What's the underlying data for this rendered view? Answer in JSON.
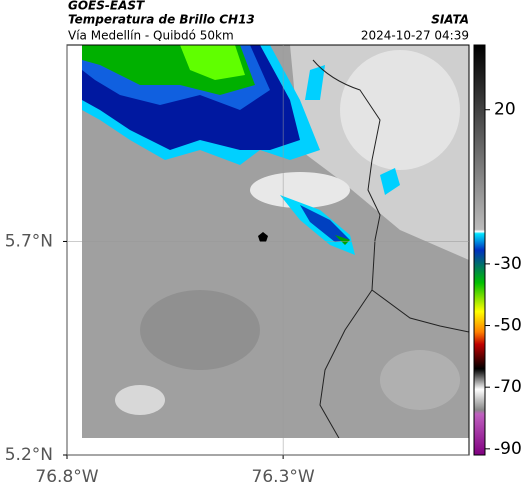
{
  "header": {
    "satellite": "GOES-EAST",
    "product": "Temperatura de Brillo CH13",
    "region": "Vía Medellín - Quibdó 50km",
    "source": "SIATA",
    "timestamp": "2024-10-27 04:39"
  },
  "map": {
    "xlim": [
      -76.8,
      -75.87
    ],
    "ylim": [
      5.2,
      6.16
    ],
    "xticks": [
      {
        "value": -76.8,
        "label": "76.8°W"
      },
      {
        "value": -76.3,
        "label": "76.3°W"
      }
    ],
    "yticks": [
      {
        "value": 5.7,
        "label": "5.7°N"
      },
      {
        "value": 5.2,
        "label": "5.2°N"
      }
    ]
  },
  "colorbar": {
    "range": [
      -92,
      41
    ],
    "ticks": [
      20,
      -30,
      -50,
      -70,
      -90
    ]
  }
}
